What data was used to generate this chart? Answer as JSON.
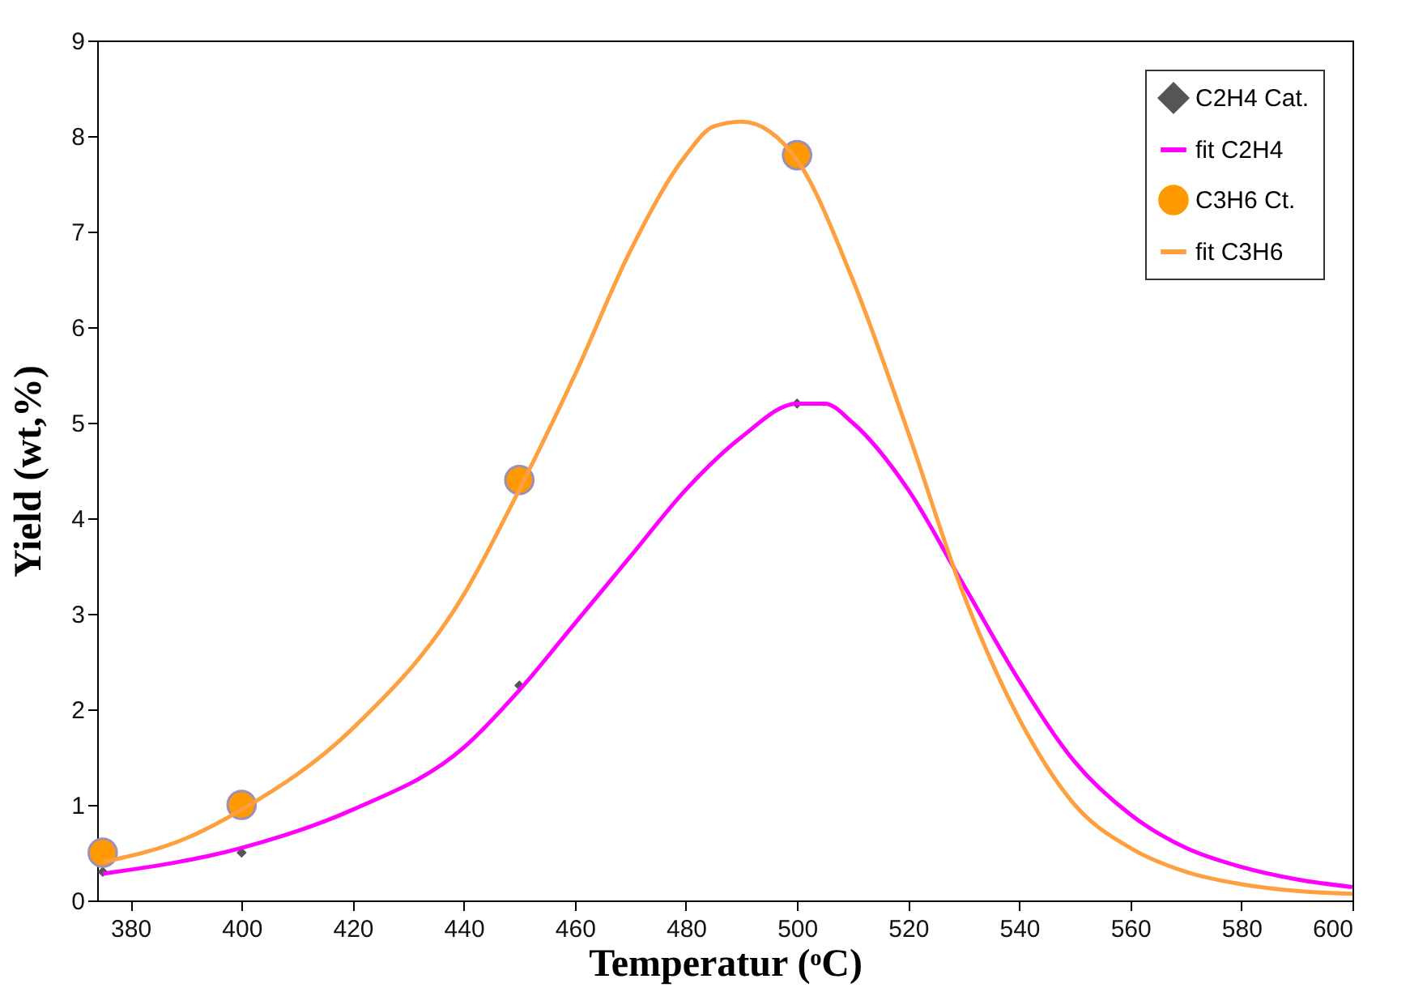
{
  "chart_data": {
    "type": "line",
    "xlabel": "Temperatur (ᵒC)",
    "ylabel": "Yield (wt,%)",
    "xlim": [
      374,
      600
    ],
    "xticks": [
      380,
      400,
      420,
      440,
      460,
      480,
      500,
      520,
      540,
      560,
      580,
      600
    ],
    "ylim": [
      0,
      9
    ],
    "yticks": [
      0,
      1,
      2,
      3,
      4,
      5,
      6,
      7,
      8,
      9
    ],
    "grid": false,
    "legend": "top right",
    "series": [
      {
        "name": "C2H4 Cat.",
        "type": "scatter",
        "marker": "diamond",
        "color": "#555555",
        "x": [
          375,
          400,
          450,
          500
        ],
        "values": [
          0.3,
          0.5,
          2.25,
          5.2
        ]
      },
      {
        "name": "fit C2H4",
        "color": "#ff00ff",
        "x": [
          375,
          400,
          420,
          440,
          450,
          460,
          470,
          480,
          490,
          500,
          505,
          510,
          520,
          530,
          540,
          550,
          560,
          570,
          580,
          590,
          600
        ],
        "values": [
          0.28,
          0.55,
          0.95,
          1.6,
          2.2,
          2.9,
          3.6,
          4.3,
          4.85,
          5.2,
          5.2,
          5.0,
          4.3,
          3.3,
          2.3,
          1.45,
          0.9,
          0.55,
          0.35,
          0.22,
          0.14
        ]
      },
      {
        "name": "C3H6 Ct.",
        "type": "scatter",
        "marker": "circle",
        "color": "#ff9900",
        "x": [
          375,
          400,
          450,
          500
        ],
        "values": [
          0.5,
          1.0,
          4.4,
          7.8
        ]
      },
      {
        "name": "fit C3H6",
        "color": "#ffa040",
        "x": [
          375,
          390,
          400,
          420,
          440,
          450,
          460,
          470,
          480,
          485,
          490,
          495,
          500,
          510,
          520,
          530,
          540,
          550,
          560,
          570,
          580,
          590,
          600
        ],
        "values": [
          0.4,
          0.65,
          0.95,
          1.8,
          3.2,
          4.3,
          5.5,
          6.8,
          7.8,
          8.1,
          8.15,
          8.05,
          7.75,
          6.5,
          4.9,
          3.2,
          1.9,
          1.0,
          0.55,
          0.3,
          0.17,
          0.1,
          0.07
        ]
      }
    ]
  }
}
